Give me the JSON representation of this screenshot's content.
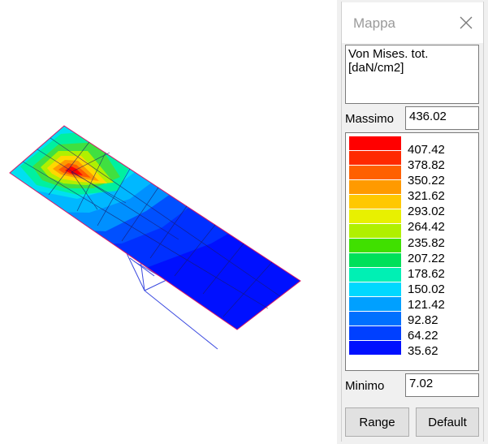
{
  "window": {
    "title": "Mappa"
  },
  "map_panel": {
    "quantity_label": "Von Mises. tot.\n[daN/cm2]",
    "max_label": "Massimo",
    "max_value": "436.02",
    "min_label": "Minimo",
    "min_value": "7.02",
    "range_button": "Range",
    "default_button": "Default",
    "legend": [
      {
        "value": "407.42",
        "color": "#ff0000"
      },
      {
        "value": "378.82",
        "color": "#ff2a00"
      },
      {
        "value": "350.22",
        "color": "#ff6000"
      },
      {
        "value": "321.62",
        "color": "#ff9a00"
      },
      {
        "value": "293.02",
        "color": "#ffc800"
      },
      {
        "value": "264.42",
        "color": "#e8f000"
      },
      {
        "value": "235.82",
        "color": "#b0f000"
      },
      {
        "value": "207.22",
        "color": "#40e000"
      },
      {
        "value": "178.62",
        "color": "#00e05a"
      },
      {
        "value": "150.02",
        "color": "#00f0b4"
      },
      {
        "value": "121.42",
        "color": "#00d8ff"
      },
      {
        "value": "92.82",
        "color": "#00a0ff"
      },
      {
        "value": "64.22",
        "color": "#0070ff"
      },
      {
        "value": "35.62",
        "color": "#0040ff"
      },
      {
        "value": "",
        "color": "#0010ff"
      }
    ]
  },
  "viewport": {
    "description_icon": "fem-stress-contour-mesh"
  }
}
